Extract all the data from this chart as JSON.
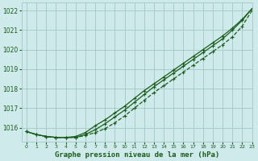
{
  "title": "Graphe pression niveau de la mer (hPa)",
  "bg_color": "#ceeaea",
  "grid_color": "#aacccc",
  "line_color": "#1a5c1a",
  "xlim": [
    -0.5,
    23
  ],
  "ylim": [
    1015.3,
    1022.4
  ],
  "yticks": [
    1016,
    1017,
    1018,
    1019,
    1020,
    1021,
    1022
  ],
  "xticks": [
    0,
    1,
    2,
    3,
    4,
    5,
    6,
    7,
    8,
    9,
    10,
    11,
    12,
    13,
    14,
    15,
    16,
    17,
    18,
    19,
    20,
    21,
    22,
    23
  ],
  "series1": [
    1015.8,
    1015.65,
    1015.55,
    1015.5,
    1015.5,
    1015.5,
    1015.6,
    1015.75,
    1015.95,
    1016.25,
    1016.6,
    1017.0,
    1017.4,
    1017.8,
    1018.15,
    1018.5,
    1018.85,
    1019.2,
    1019.55,
    1019.9,
    1020.25,
    1020.65,
    1021.2,
    1022.0
  ],
  "series2": [
    1015.8,
    1015.65,
    1015.55,
    1015.5,
    1015.5,
    1015.5,
    1015.65,
    1015.9,
    1016.2,
    1016.55,
    1016.9,
    1017.3,
    1017.7,
    1018.1,
    1018.45,
    1018.8,
    1019.15,
    1019.5,
    1019.85,
    1020.2,
    1020.55,
    1021.0,
    1021.5,
    1022.1
  ],
  "series3": [
    1015.8,
    1015.65,
    1015.55,
    1015.5,
    1015.5,
    1015.55,
    1015.75,
    1016.1,
    1016.4,
    1016.75,
    1017.1,
    1017.5,
    1017.9,
    1018.25,
    1018.6,
    1018.95,
    1019.3,
    1019.65,
    1020.0,
    1020.35,
    1020.7,
    1021.1,
    1021.55,
    1022.1
  ]
}
